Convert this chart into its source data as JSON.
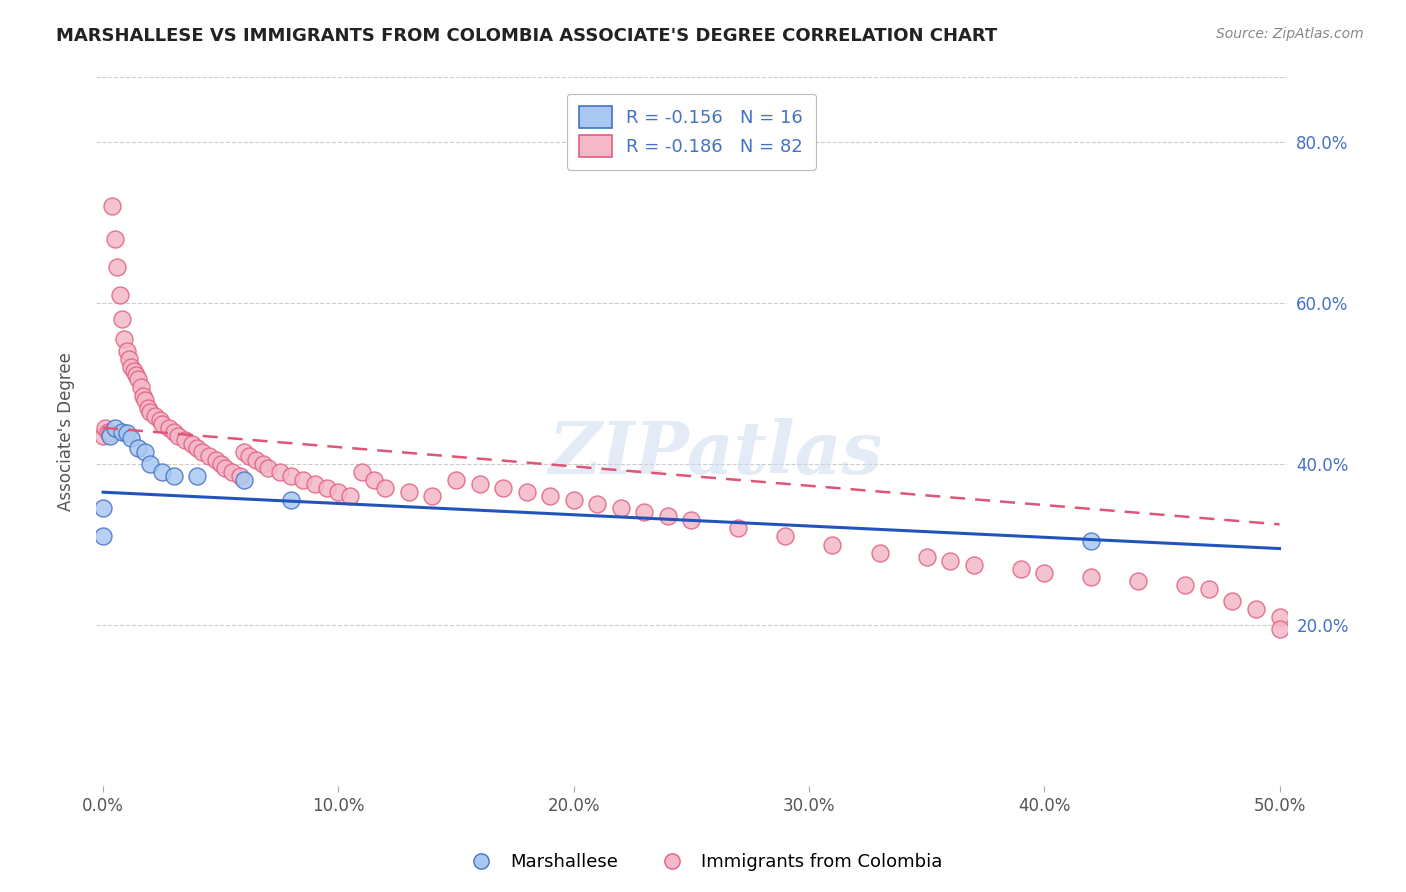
{
  "title": "MARSHALLESE VS IMMIGRANTS FROM COLOMBIA ASSOCIATE'S DEGREE CORRELATION CHART",
  "source": "Source: ZipAtlas.com",
  "ylabel": "Associate's Degree",
  "xlim": [
    0.0,
    0.5
  ],
  "ylim": [
    0.0,
    0.88
  ],
  "xtick_vals": [
    0.0,
    0.1,
    0.2,
    0.3,
    0.4,
    0.5
  ],
  "xtick_labels": [
    "0.0%",
    "10.0%",
    "20.0%",
    "30.0%",
    "40.0%",
    "50.0%"
  ],
  "ytick_vals": [
    0.2,
    0.4,
    0.6,
    0.8
  ],
  "ytick_labels": [
    "20.0%",
    "40.0%",
    "60.0%",
    "80.0%"
  ],
  "blue_fill": "#a8c8f0",
  "blue_edge": "#4472c4",
  "pink_fill": "#f4b8c8",
  "pink_edge": "#e06080",
  "blue_line_color": "#2255bb",
  "pink_line_color": "#dd5577",
  "legend_R_blue": "R = -0.156",
  "legend_N_blue": "N = 16",
  "legend_R_pink": "R = -0.186",
  "legend_N_pink": "N = 82",
  "watermark": "ZIPatlas",
  "legend_labels": [
    "Marshallese",
    "Immigrants from Colombia"
  ],
  "background_color": "#ffffff",
  "grid_color": "#cccccc",
  "title_color": "#222222",
  "source_color": "#888888",
  "blue_line_x": [
    0.0,
    0.5
  ],
  "blue_line_y": [
    0.365,
    0.295
  ],
  "pink_line_x": [
    0.0,
    0.5
  ],
  "pink_line_y": [
    0.445,
    0.325
  ],
  "blue_x": [
    0.0,
    0.0,
    0.003,
    0.005,
    0.008,
    0.01,
    0.012,
    0.015,
    0.018,
    0.02,
    0.025,
    0.03,
    0.04,
    0.06,
    0.08,
    0.42
  ],
  "blue_y": [
    0.31,
    0.345,
    0.435,
    0.445,
    0.44,
    0.438,
    0.432,
    0.42,
    0.415,
    0.4,
    0.39,
    0.385,
    0.385,
    0.38,
    0.355,
    0.305
  ],
  "pink_x": [
    0.0,
    0.001,
    0.002,
    0.003,
    0.004,
    0.005,
    0.006,
    0.007,
    0.008,
    0.009,
    0.01,
    0.011,
    0.012,
    0.013,
    0.014,
    0.015,
    0.016,
    0.017,
    0.018,
    0.019,
    0.02,
    0.022,
    0.024,
    0.025,
    0.028,
    0.03,
    0.032,
    0.035,
    0.038,
    0.04,
    0.042,
    0.045,
    0.048,
    0.05,
    0.052,
    0.055,
    0.058,
    0.06,
    0.062,
    0.065,
    0.068,
    0.07,
    0.075,
    0.08,
    0.085,
    0.09,
    0.095,
    0.1,
    0.105,
    0.11,
    0.115,
    0.12,
    0.13,
    0.14,
    0.15,
    0.16,
    0.17,
    0.18,
    0.19,
    0.2,
    0.21,
    0.22,
    0.23,
    0.24,
    0.25,
    0.27,
    0.29,
    0.31,
    0.33,
    0.35,
    0.36,
    0.37,
    0.39,
    0.4,
    0.42,
    0.44,
    0.46,
    0.47,
    0.48,
    0.49,
    0.5,
    0.5
  ],
  "pink_y": [
    0.435,
    0.445,
    0.44,
    0.438,
    0.72,
    0.68,
    0.645,
    0.61,
    0.58,
    0.555,
    0.54,
    0.53,
    0.52,
    0.515,
    0.51,
    0.505,
    0.495,
    0.485,
    0.48,
    0.47,
    0.465,
    0.46,
    0.455,
    0.45,
    0.445,
    0.44,
    0.435,
    0.43,
    0.425,
    0.42,
    0.415,
    0.41,
    0.405,
    0.4,
    0.395,
    0.39,
    0.385,
    0.415,
    0.41,
    0.405,
    0.4,
    0.395,
    0.39,
    0.385,
    0.38,
    0.375,
    0.37,
    0.365,
    0.36,
    0.39,
    0.38,
    0.37,
    0.365,
    0.36,
    0.38,
    0.375,
    0.37,
    0.365,
    0.36,
    0.355,
    0.35,
    0.345,
    0.34,
    0.335,
    0.33,
    0.32,
    0.31,
    0.3,
    0.29,
    0.285,
    0.28,
    0.275,
    0.27,
    0.265,
    0.26,
    0.255,
    0.25,
    0.245,
    0.23,
    0.22,
    0.21,
    0.195
  ]
}
